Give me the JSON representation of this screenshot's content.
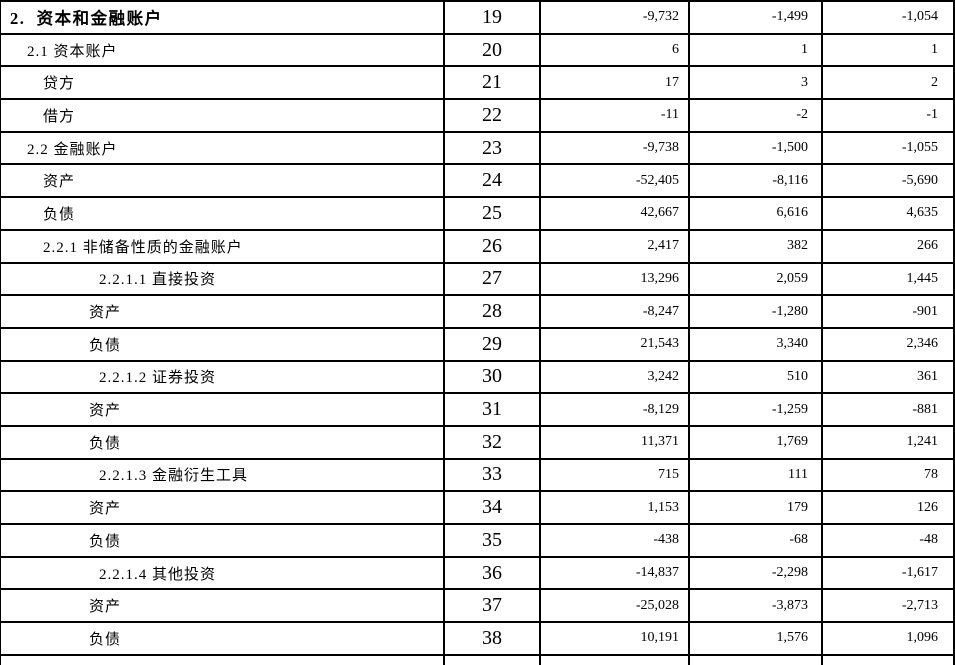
{
  "colors": {
    "background": "#ffffff",
    "border": "#000000",
    "text": "#000000"
  },
  "table": {
    "rows": [
      {
        "label": "2.  资本和金融账户",
        "level": 0,
        "bold": true,
        "row_no": "19",
        "values": [
          "-9,732",
          "-1,499",
          "-1,054"
        ]
      },
      {
        "label": "2.1 资本账户",
        "level": 1,
        "bold": false,
        "row_no": "20",
        "values": [
          "6",
          "1",
          "1"
        ]
      },
      {
        "label": "贷方",
        "level": 2,
        "bold": false,
        "row_no": "21",
        "values": [
          "17",
          "3",
          "2"
        ]
      },
      {
        "label": "借方",
        "level": 2,
        "bold": false,
        "row_no": "22",
        "values": [
          "-11",
          "-2",
          "-1"
        ]
      },
      {
        "label": "2.2 金融账户",
        "level": 1,
        "bold": false,
        "row_no": "23",
        "values": [
          "-9,738",
          "-1,500",
          "-1,055"
        ]
      },
      {
        "label": "资产",
        "level": 2,
        "bold": false,
        "row_no": "24",
        "values": [
          "-52,405",
          "-8,116",
          "-5,690"
        ]
      },
      {
        "label": "负债",
        "level": 2,
        "bold": false,
        "row_no": "25",
        "values": [
          "42,667",
          "6,616",
          "4,635"
        ]
      },
      {
        "label": "2.2.1 非储备性质的金融账户",
        "level": 2,
        "bold": false,
        "row_no": "26",
        "values": [
          "2,417",
          "382",
          "266"
        ]
      },
      {
        "label": "2.2.1.1 直接投资",
        "level": 3,
        "bold": false,
        "row_no": "27",
        "values": [
          "13,296",
          "2,059",
          "1,445"
        ]
      },
      {
        "label": "资产",
        "level": 4,
        "bold": false,
        "row_no": "28",
        "values": [
          "-8,247",
          "-1,280",
          "-901"
        ]
      },
      {
        "label": "负债",
        "level": 4,
        "bold": false,
        "row_no": "29",
        "values": [
          "21,543",
          "3,340",
          "2,346"
        ]
      },
      {
        "label": "2.2.1.2 证券投资",
        "level": 3,
        "bold": false,
        "row_no": "30",
        "values": [
          "3,242",
          "510",
          "361"
        ]
      },
      {
        "label": "资产",
        "level": 4,
        "bold": false,
        "row_no": "31",
        "values": [
          "-8,129",
          "-1,259",
          "-881"
        ]
      },
      {
        "label": "负债",
        "level": 4,
        "bold": false,
        "row_no": "32",
        "values": [
          "11,371",
          "1,769",
          "1,241"
        ]
      },
      {
        "label": "2.2.1.3 金融衍生工具",
        "level": 3,
        "bold": false,
        "row_no": "33",
        "values": [
          "715",
          "111",
          "78"
        ]
      },
      {
        "label": "资产",
        "level": 4,
        "bold": false,
        "row_no": "34",
        "values": [
          "1,153",
          "179",
          "126"
        ]
      },
      {
        "label": "负债",
        "level": 4,
        "bold": false,
        "row_no": "35",
        "values": [
          "-438",
          "-68",
          "-48"
        ]
      },
      {
        "label": "2.2.1.4 其他投资",
        "level": 3,
        "bold": false,
        "row_no": "36",
        "values": [
          "-14,837",
          "-2,298",
          "-1,617"
        ]
      },
      {
        "label": "资产",
        "level": 4,
        "bold": false,
        "row_no": "37",
        "values": [
          "-25,028",
          "-3,873",
          "-2,713"
        ]
      },
      {
        "label": "负债",
        "level": 4,
        "bold": false,
        "row_no": "38",
        "values": [
          "10,191",
          "1,576",
          "1,096"
        ]
      }
    ]
  }
}
